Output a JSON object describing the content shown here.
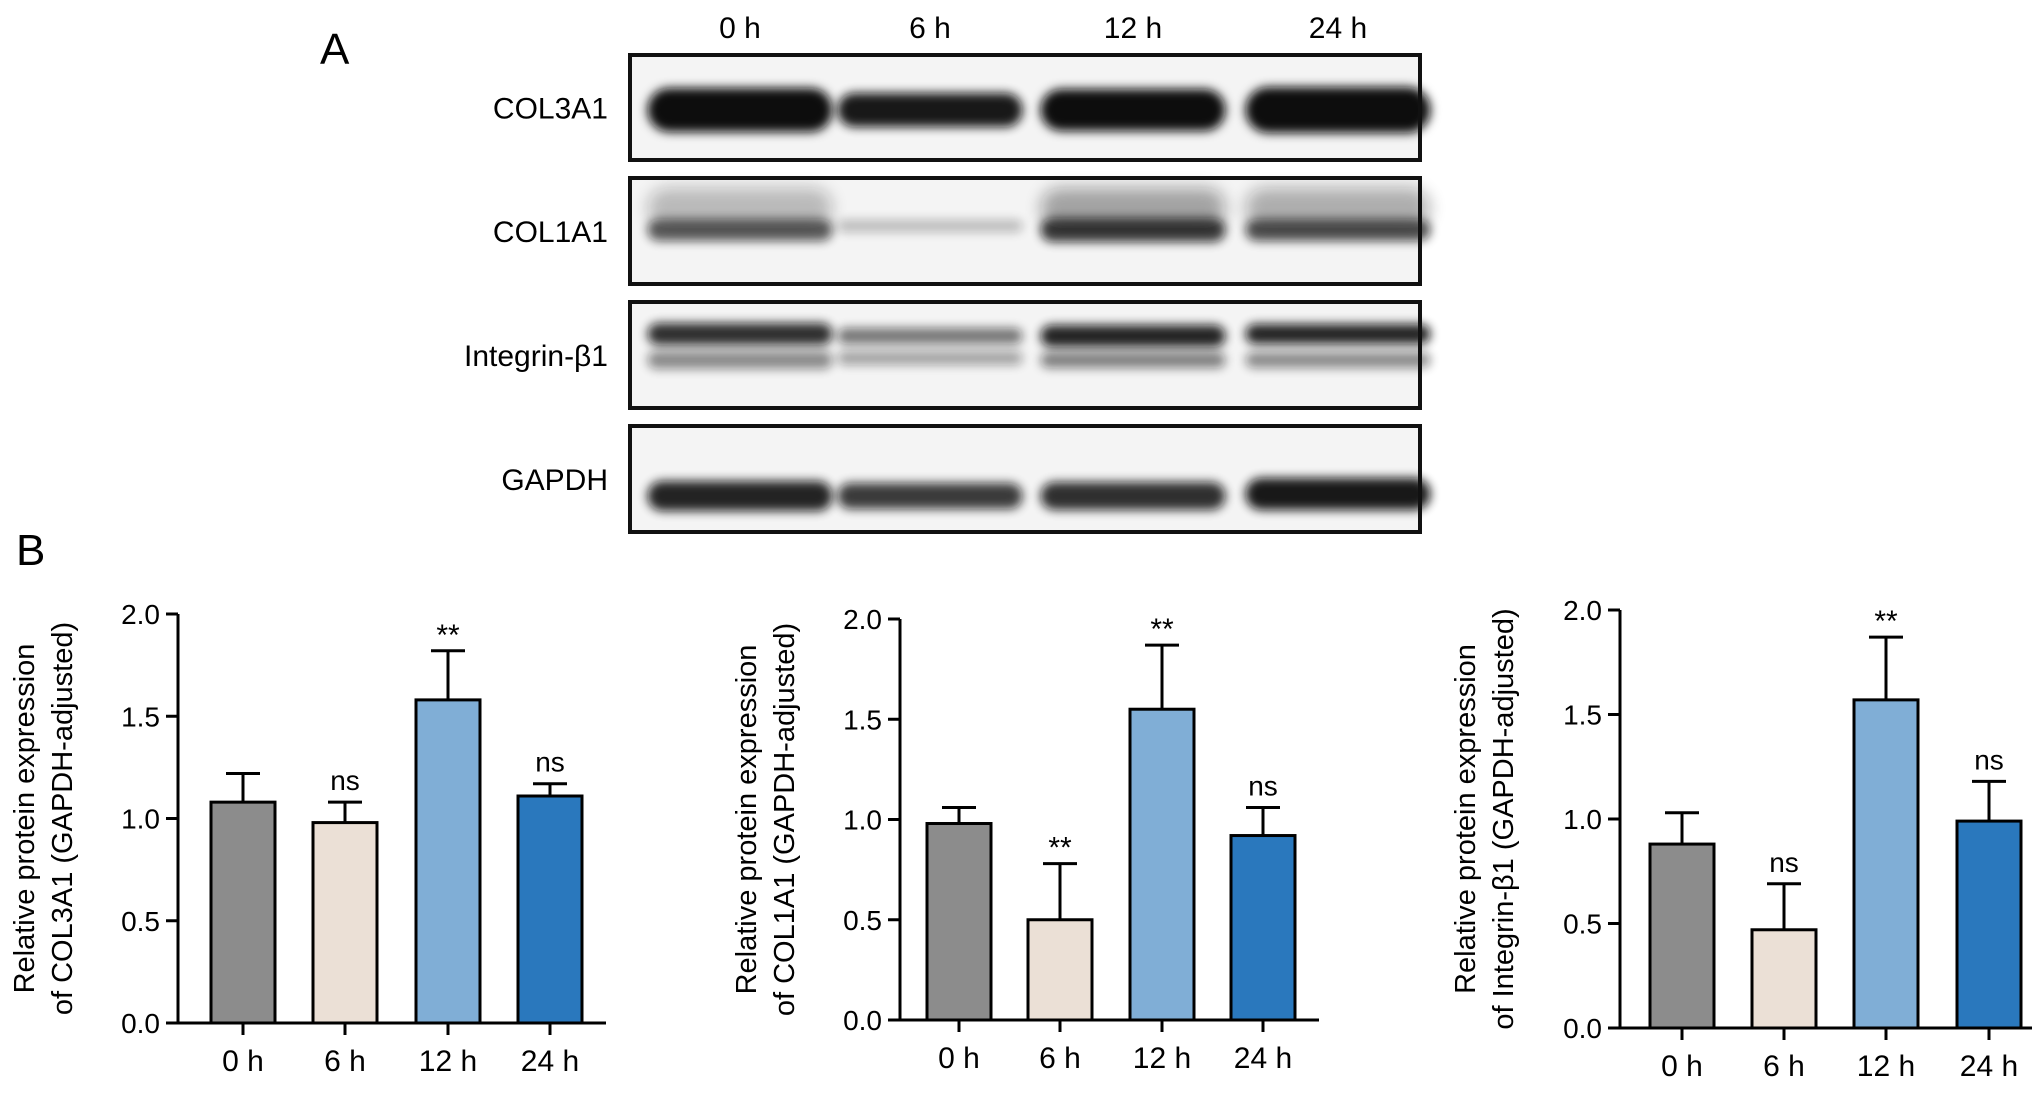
{
  "panel_a": {
    "letter": "A",
    "lane_labels": [
      "0 h",
      "6 h",
      "12 h",
      "24 h"
    ],
    "proteins": [
      "COL3A1",
      "COL1A1",
      "Integrin-β1",
      "GAPDH"
    ],
    "colors": {
      "frame": "#111111",
      "band": "#0d0d0d",
      "background": "#f4f4f4"
    }
  },
  "panel_b": {
    "letter": "B"
  },
  "colors": {
    "0 h": "#8c8c8c",
    "6 h": "#ebe0d6",
    "12 h": "#80aed6",
    "24 h": "#2a78bd"
  },
  "chart_data": [
    {
      "type": "bar",
      "categories": [
        "0 h",
        "6 h",
        "12 h",
        "24 h"
      ],
      "values": [
        1.08,
        0.98,
        1.58,
        1.11
      ],
      "errors": [
        0.14,
        0.1,
        0.24,
        0.06
      ],
      "significance": [
        "",
        "ns",
        "**",
        "ns"
      ],
      "ylabel": [
        "Relative protein expression",
        "of COL3A1 (GAPDH-adjusted)"
      ],
      "ylim": [
        0,
        2.0
      ],
      "yticks": [
        "0.0",
        "0.5",
        "1.0",
        "1.5",
        "2.0"
      ]
    },
    {
      "type": "bar",
      "categories": [
        "0 h",
        "6 h",
        "12 h",
        "24 h"
      ],
      "values": [
        0.98,
        0.5,
        1.55,
        0.92
      ],
      "errors": [
        0.08,
        0.28,
        0.32,
        0.14
      ],
      "significance": [
        "",
        "**",
        "**",
        "ns"
      ],
      "ylabel": [
        "Relative protein expression",
        "of COL1A1 (GAPDH-adjusted)"
      ],
      "ylim": [
        0,
        2.0
      ],
      "yticks": [
        "0.0",
        "0.5",
        "1.0",
        "1.5",
        "2.0"
      ]
    },
    {
      "type": "bar",
      "categories": [
        "0 h",
        "6 h",
        "12 h",
        "24 h"
      ],
      "values": [
        0.88,
        0.47,
        1.57,
        0.99
      ],
      "errors": [
        0.15,
        0.22,
        0.3,
        0.19
      ],
      "significance": [
        "",
        "ns",
        "**",
        "ns"
      ],
      "ylabel": [
        "Relative protein expression",
        "of Integrin-β1 (GAPDH-adjusted)"
      ],
      "ylim": [
        0,
        2.0
      ],
      "yticks": [
        "0.0",
        "0.5",
        "1.0",
        "1.5",
        "2.0"
      ]
    }
  ]
}
